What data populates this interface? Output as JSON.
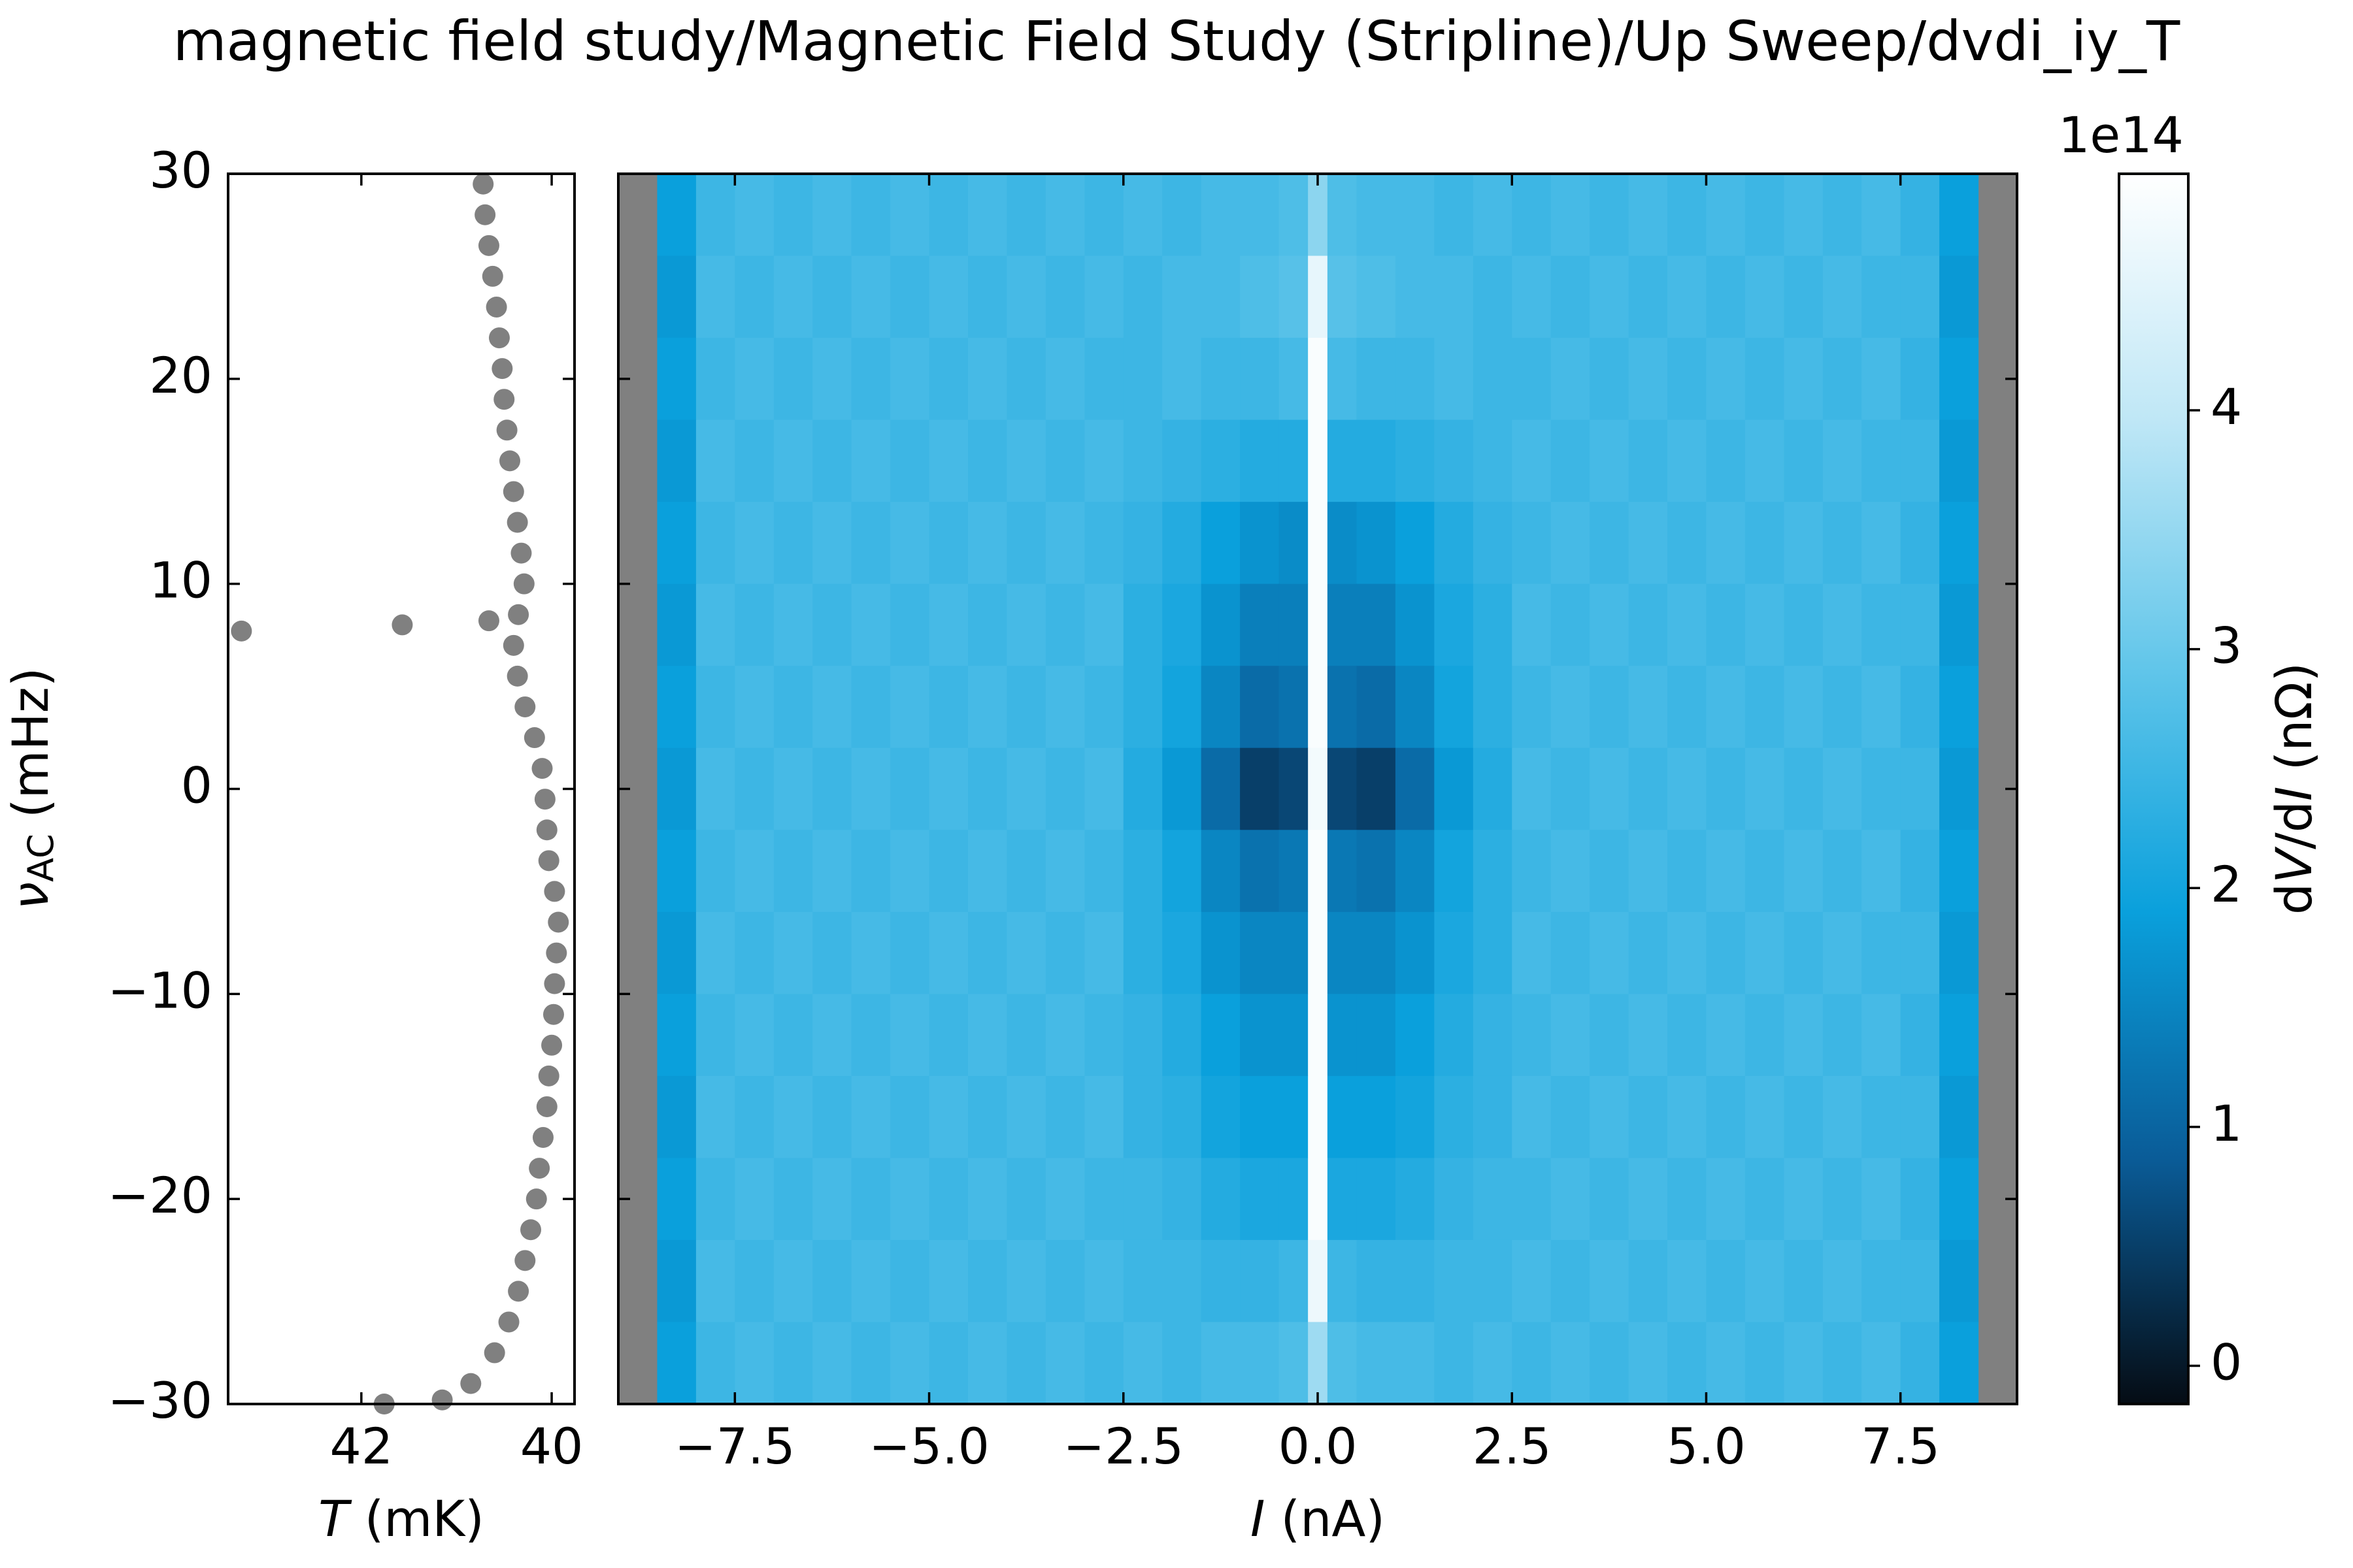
{
  "title": "magnetic field study/Magnetic Field Study (Stripline)/Up Sweep/dvdi_iy_T",
  "chart_data": [
    {
      "type": "scatter",
      "xlabel": [
        "T",
        " (mK)"
      ],
      "ylabel": [
        "ν",
        "AC",
        " (mHz)"
      ],
      "color": "#808080",
      "xlim": [
        43.4,
        39.76
      ],
      "xticks": [
        42,
        40
      ],
      "ylim": [
        -30,
        30
      ],
      "yticks": [
        {
          "value": -30,
          "label": "−30"
        },
        {
          "value": -20,
          "label": "−20"
        },
        {
          "value": -10,
          "label": "−10"
        },
        0,
        10,
        20,
        30
      ],
      "x": [
        40.72,
        40.7,
        40.66,
        40.62,
        40.58,
        40.55,
        40.52,
        40.5,
        40.47,
        40.44,
        40.4,
        40.36,
        40.32,
        40.29,
        40.35,
        40.4,
        40.36,
        40.28,
        40.18,
        40.1,
        40.07,
        40.05,
        40.03,
        39.97,
        39.93,
        39.95,
        39.97,
        39.98,
        40.0,
        40.03,
        40.05,
        40.09,
        40.13,
        40.16,
        40.22,
        40.28,
        40.35,
        40.45,
        40.6,
        40.85,
        41.15,
        43.26,
        41.57,
        40.66,
        41.76
      ],
      "y": [
        29.5,
        28,
        26.5,
        25,
        23.5,
        22,
        20.5,
        19,
        17.5,
        16,
        14.5,
        13,
        11.5,
        10,
        8.5,
        7,
        5.5,
        4,
        2.5,
        1,
        -0.5,
        -2,
        -3.5,
        -5,
        -6.5,
        -8,
        -9.5,
        -11,
        -12.5,
        -14,
        -15.5,
        -17,
        -18.5,
        -20,
        -21.5,
        -23,
        -24.5,
        -26,
        -27.5,
        -29,
        -29.8,
        7.7,
        8.0,
        8.2,
        -30
      ]
    },
    {
      "type": "heatmap",
      "xlabel": [
        "I",
        " (nA)"
      ],
      "xlim": [
        -9,
        9
      ],
      "xticks": [
        {
          "value": -7.5,
          "label": "−7.5"
        },
        {
          "value": -5,
          "label": "−5.0"
        },
        {
          "value": -2.5,
          "label": "−2.5"
        },
        {
          "value": 0,
          "label": "0.0"
        },
        2.5,
        {
          "value": 5,
          "label": "5.0"
        },
        7.5
      ],
      "ylim": [
        -30,
        30
      ],
      "yticks": [
        -30,
        -20,
        -10,
        0,
        10,
        20,
        30
      ],
      "nan_color": "#808080",
      "colormap": [
        "#050c14",
        "#0a5c98",
        "#0aa0dc",
        "#62c6ea",
        "#bfe7f6",
        "#ffffff"
      ],
      "x_edges": [
        -9,
        -8.5,
        -8,
        -7.5,
        -7,
        -6.5,
        -6,
        -5.5,
        -5,
        -4.5,
        -4,
        -3.5,
        -3,
        -2.5,
        -2,
        -1.5,
        -1,
        -0.5,
        -0.125,
        0.125,
        0.5,
        1,
        1.5,
        2,
        2.5,
        3,
        3.5,
        4,
        4.5,
        5,
        5.5,
        6,
        6.5,
        7,
        7.5,
        8,
        8.5,
        9
      ],
      "y_edges": [
        30,
        26,
        22,
        18,
        14,
        10,
        6,
        2,
        -2,
        -6,
        -10,
        -14,
        -18,
        -22,
        -26,
        -30
      ],
      "z": [
        [
          null,
          1.9,
          2.5,
          2.6,
          2.5,
          2.6,
          2.5,
          2.6,
          2.5,
          2.6,
          2.5,
          2.6,
          2.5,
          2.6,
          2.5,
          2.6,
          2.6,
          2.7,
          3.4,
          2.7,
          2.6,
          2.6,
          2.5,
          2.6,
          2.5,
          2.6,
          2.5,
          2.6,
          2.5,
          2.6,
          2.5,
          2.6,
          2.5,
          2.6,
          2.4,
          1.9,
          null
        ],
        [
          null,
          1.8,
          2.6,
          2.5,
          2.6,
          2.5,
          2.6,
          2.5,
          2.6,
          2.5,
          2.6,
          2.5,
          2.6,
          2.5,
          2.6,
          2.6,
          2.7,
          2.8,
          4.6,
          2.8,
          2.7,
          2.6,
          2.6,
          2.5,
          2.6,
          2.5,
          2.6,
          2.5,
          2.6,
          2.5,
          2.6,
          2.5,
          2.6,
          2.5,
          2.5,
          1.8,
          null
        ],
        [
          null,
          1.9,
          2.5,
          2.6,
          2.5,
          2.6,
          2.5,
          2.6,
          2.5,
          2.6,
          2.5,
          2.6,
          2.5,
          2.5,
          2.6,
          2.5,
          2.5,
          2.6,
          4.9,
          2.6,
          2.5,
          2.5,
          2.6,
          2.5,
          2.5,
          2.6,
          2.5,
          2.6,
          2.5,
          2.6,
          2.5,
          2.6,
          2.5,
          2.6,
          2.4,
          1.9,
          null
        ],
        [
          null,
          1.8,
          2.6,
          2.5,
          2.6,
          2.5,
          2.6,
          2.5,
          2.6,
          2.5,
          2.6,
          2.5,
          2.6,
          2.5,
          2.4,
          2.3,
          2.2,
          2.2,
          4.9,
          2.2,
          2.2,
          2.3,
          2.4,
          2.5,
          2.6,
          2.5,
          2.6,
          2.5,
          2.6,
          2.5,
          2.6,
          2.5,
          2.6,
          2.5,
          2.5,
          1.8,
          null
        ],
        [
          null,
          1.9,
          2.5,
          2.6,
          2.5,
          2.6,
          2.5,
          2.6,
          2.5,
          2.6,
          2.5,
          2.6,
          2.5,
          2.4,
          2.2,
          1.9,
          1.7,
          1.6,
          4.9,
          1.6,
          1.7,
          1.9,
          2.2,
          2.4,
          2.5,
          2.6,
          2.5,
          2.6,
          2.5,
          2.6,
          2.5,
          2.6,
          2.5,
          2.6,
          2.4,
          1.9,
          null
        ],
        [
          null,
          1.8,
          2.6,
          2.5,
          2.6,
          2.5,
          2.6,
          2.5,
          2.6,
          2.5,
          2.6,
          2.5,
          2.6,
          2.3,
          2.1,
          1.7,
          1.4,
          1.4,
          4.9,
          1.4,
          1.4,
          1.7,
          2.1,
          2.3,
          2.6,
          2.5,
          2.6,
          2.5,
          2.6,
          2.5,
          2.6,
          2.5,
          2.6,
          2.5,
          2.5,
          1.8,
          null
        ],
        [
          null,
          1.9,
          2.5,
          2.6,
          2.5,
          2.6,
          2.5,
          2.6,
          2.5,
          2.6,
          2.5,
          2.6,
          2.5,
          2.3,
          2.0,
          1.5,
          1.1,
          1.2,
          4.9,
          1.2,
          1.1,
          1.5,
          2.0,
          2.3,
          2.5,
          2.6,
          2.5,
          2.6,
          2.5,
          2.6,
          2.5,
          2.6,
          2.5,
          2.6,
          2.4,
          1.9,
          null
        ],
        [
          null,
          1.8,
          2.6,
          2.5,
          2.6,
          2.5,
          2.6,
          2.5,
          2.6,
          2.5,
          2.6,
          2.5,
          2.6,
          2.2,
          1.8,
          1.1,
          0.5,
          0.6,
          4.8,
          0.6,
          0.5,
          1.1,
          1.8,
          2.2,
          2.6,
          2.5,
          2.6,
          2.5,
          2.6,
          2.5,
          2.6,
          2.5,
          2.6,
          2.5,
          2.5,
          1.8,
          null
        ],
        [
          null,
          1.9,
          2.5,
          2.6,
          2.5,
          2.6,
          2.5,
          2.6,
          2.5,
          2.6,
          2.5,
          2.6,
          2.5,
          2.3,
          2.0,
          1.5,
          1.2,
          1.3,
          4.9,
          1.3,
          1.2,
          1.5,
          2.0,
          2.3,
          2.5,
          2.6,
          2.5,
          2.6,
          2.5,
          2.6,
          2.5,
          2.6,
          2.5,
          2.6,
          2.4,
          1.9,
          null
        ],
        [
          null,
          1.8,
          2.6,
          2.5,
          2.6,
          2.5,
          2.6,
          2.5,
          2.6,
          2.5,
          2.6,
          2.5,
          2.6,
          2.3,
          2.1,
          1.7,
          1.5,
          1.5,
          4.9,
          1.5,
          1.5,
          1.7,
          2.1,
          2.3,
          2.6,
          2.5,
          2.6,
          2.5,
          2.6,
          2.5,
          2.6,
          2.5,
          2.6,
          2.5,
          2.5,
          1.8,
          null
        ],
        [
          null,
          1.9,
          2.5,
          2.6,
          2.5,
          2.6,
          2.5,
          2.6,
          2.5,
          2.6,
          2.5,
          2.6,
          2.5,
          2.4,
          2.2,
          1.9,
          1.7,
          1.7,
          4.9,
          1.7,
          1.7,
          1.9,
          2.2,
          2.4,
          2.5,
          2.6,
          2.5,
          2.6,
          2.5,
          2.6,
          2.5,
          2.6,
          2.5,
          2.6,
          2.4,
          1.9,
          null
        ],
        [
          null,
          1.8,
          2.6,
          2.5,
          2.6,
          2.5,
          2.6,
          2.5,
          2.6,
          2.5,
          2.6,
          2.5,
          2.6,
          2.4,
          2.3,
          2.0,
          1.9,
          1.9,
          4.9,
          1.9,
          1.9,
          2.0,
          2.3,
          2.4,
          2.6,
          2.5,
          2.6,
          2.5,
          2.6,
          2.5,
          2.6,
          2.5,
          2.6,
          2.5,
          2.5,
          1.8,
          null
        ],
        [
          null,
          1.9,
          2.5,
          2.6,
          2.5,
          2.6,
          2.5,
          2.6,
          2.5,
          2.6,
          2.5,
          2.6,
          2.5,
          2.5,
          2.4,
          2.2,
          2.1,
          2.1,
          4.9,
          2.1,
          2.1,
          2.2,
          2.4,
          2.5,
          2.5,
          2.6,
          2.5,
          2.6,
          2.5,
          2.6,
          2.5,
          2.6,
          2.5,
          2.6,
          2.4,
          1.9,
          null
        ],
        [
          null,
          1.8,
          2.6,
          2.5,
          2.6,
          2.5,
          2.6,
          2.5,
          2.6,
          2.5,
          2.6,
          2.5,
          2.6,
          2.5,
          2.5,
          2.4,
          2.4,
          2.5,
          4.7,
          2.5,
          2.4,
          2.4,
          2.5,
          2.5,
          2.6,
          2.5,
          2.6,
          2.5,
          2.6,
          2.5,
          2.6,
          2.5,
          2.6,
          2.5,
          2.5,
          1.8,
          null
        ],
        [
          null,
          1.9,
          2.5,
          2.6,
          2.5,
          2.6,
          2.5,
          2.6,
          2.5,
          2.6,
          2.5,
          2.6,
          2.5,
          2.6,
          2.5,
          2.6,
          2.6,
          2.7,
          3.6,
          2.7,
          2.6,
          2.6,
          2.5,
          2.6,
          2.5,
          2.6,
          2.5,
          2.6,
          2.5,
          2.6,
          2.5,
          2.6,
          2.5,
          2.6,
          2.4,
          1.9,
          null
        ]
      ],
      "colorbar": {
        "label": [
          "d",
          "V",
          "/d",
          "I",
          " (nΩ)"
        ],
        "offset_text": "1e14",
        "clim": [
          -0.16,
          4.99
        ],
        "ticks": [
          0,
          1,
          2,
          3,
          4
        ]
      }
    }
  ]
}
